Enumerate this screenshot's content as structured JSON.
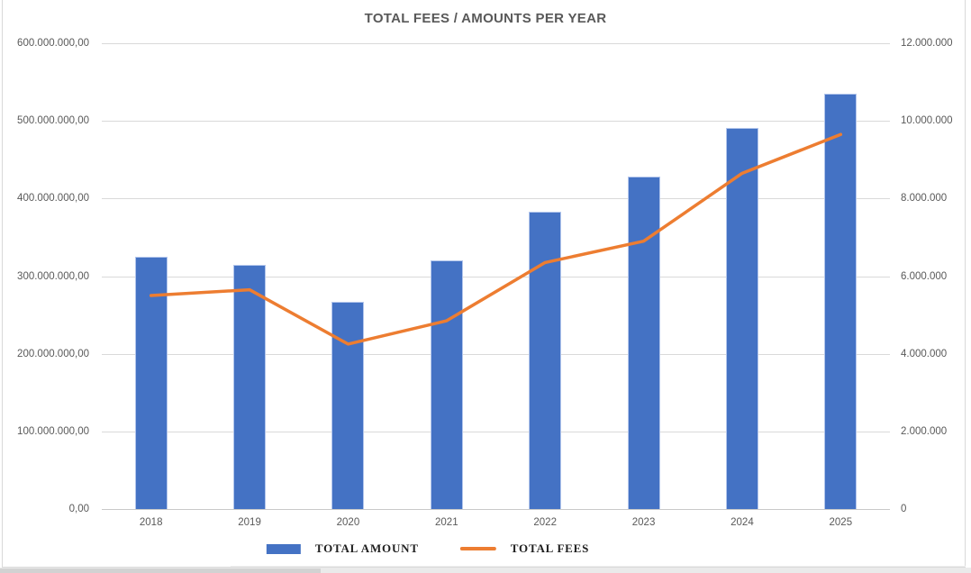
{
  "chart_data": {
    "type": "combo",
    "title": "TOTAL FEES / AMOUNTS PER YEAR",
    "categories": [
      "2018",
      "2019",
      "2020",
      "2021",
      "2022",
      "2023",
      "2024",
      "2025"
    ],
    "series": [
      {
        "name": "TOTAL AMOUNT",
        "type": "bar",
        "axis": "left",
        "color": "#4472C4",
        "values": [
          325000000,
          315000000,
          267000000,
          320000000,
          383000000,
          428000000,
          491000000,
          535000000
        ]
      },
      {
        "name": "TOTAL FEES",
        "type": "line",
        "axis": "right",
        "color": "#ED7D31",
        "values": [
          5500000,
          5650000,
          4250000,
          4850000,
          6350000,
          6900000,
          8650000,
          9650000
        ]
      }
    ],
    "left_axis": {
      "min": 0,
      "max": 600000000,
      "step": 100000000,
      "tick_labels": [
        "600.000.000,00",
        "500.000.000,00",
        "400.000.000,00",
        "300.000.000,00",
        "200.000.000,00",
        "100.000.000,00",
        "0,00"
      ]
    },
    "right_axis": {
      "min": 0,
      "max": 12000000,
      "step": 2000000,
      "tick_labels": [
        "12.000.000",
        "10.000.000",
        "8.000.000",
        "6.000.000",
        "4.000.000",
        "2.000.000",
        "0"
      ]
    },
    "grid": true,
    "legend_position": "bottom"
  }
}
